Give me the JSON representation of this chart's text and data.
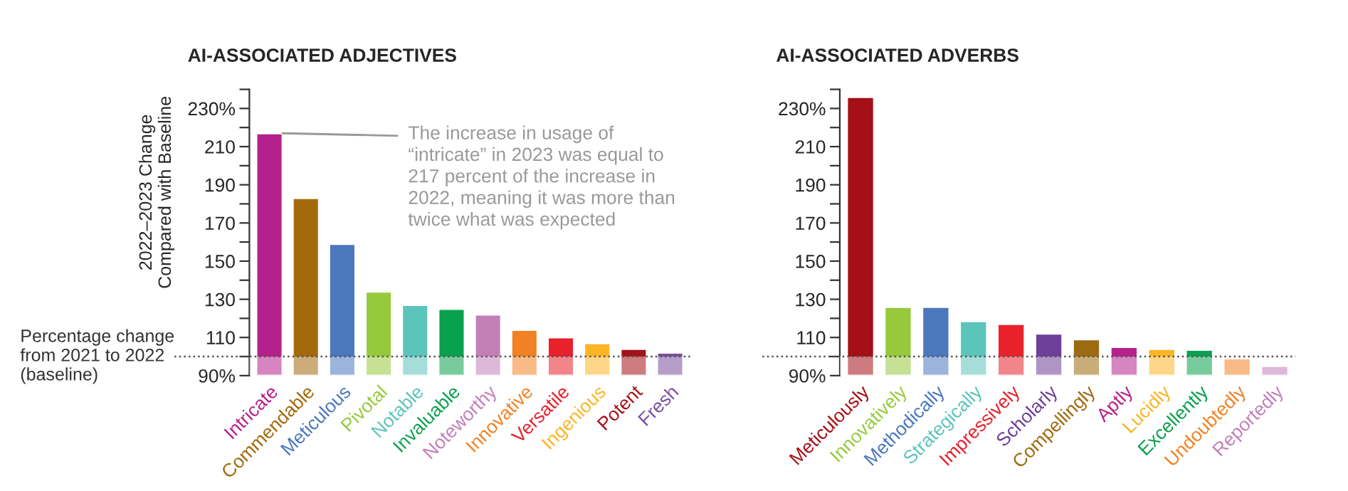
{
  "chart_data": [
    {
      "type": "bar",
      "title": "AI-ASSOCIATED ADJECTIVES",
      "ylabel": "2022–2023 Change\nCompared with Baseline",
      "categories": [
        "Intricate",
        "Commendable",
        "Meticulous",
        "Pivotal",
        "Notable",
        "Invaluable",
        "Noteworthy",
        "Innovative",
        "Versatile",
        "Ingenious",
        "Potent",
        "Fresh"
      ],
      "values": [
        217,
        183,
        159,
        134,
        127,
        125,
        122,
        114,
        110,
        107,
        104,
        102
      ],
      "colors": [
        "#b5218c",
        "#a36a0b",
        "#4a77bd",
        "#97c93d",
        "#5bc4bb",
        "#0aa14e",
        "#c47fb8",
        "#f28123",
        "#e8212b",
        "#fbb525",
        "#a41219",
        "#7a4fa0"
      ],
      "ylim": [
        90,
        240
      ],
      "yticks": [
        {
          "value": 90,
          "label": "90%"
        },
        {
          "value": 100,
          "label": null
        },
        110,
        {
          "value": 120,
          "label": null
        },
        130,
        {
          "value": 140,
          "label": null
        },
        150,
        {
          "value": 160,
          "label": null
        },
        170,
        {
          "value": 180,
          "label": null
        },
        190,
        {
          "value": 200,
          "label": null
        },
        210,
        {
          "value": 220,
          "label": null
        },
        {
          "value": 230,
          "label": "230%"
        },
        {
          "value": 240,
          "label": null
        }
      ],
      "ref_lines": [
        {
          "axis": "y",
          "value": 100,
          "label": "Percentage change\nfrom 2021 to 2022\n(baseline)",
          "color": "#555555",
          "line_style": "dotted"
        }
      ],
      "bands": [
        {
          "axis": "y",
          "from": 90,
          "to": 100,
          "color": "#ffffff"
        }
      ],
      "annotations": [
        {
          "text": "The increase in usage of\n“intricate” in 2023 was equal to\n217 percent of the increase in\n2022, meaning it was more than\ntwice what was expected",
          "x": "Intricate",
          "y": 217
        }
      ],
      "grid": false,
      "legend": false
    },
    {
      "type": "bar",
      "title": "AI-ASSOCIATED ADVERBS",
      "categories": [
        "Meticulously",
        "Innovatively",
        "Methodically",
        "Strategically",
        "Impressively",
        "Scholarly",
        "Compellingly",
        "Aptly",
        "Lucidly",
        "Excellently",
        "Undoubtedly",
        "Reportedly"
      ],
      "values": [
        236,
        126,
        126,
        118.5,
        117,
        112,
        109,
        105,
        104,
        103.5,
        99,
        95
      ],
      "colors": [
        "#a50f15",
        "#97c93d",
        "#4a77bd",
        "#5bc4bb",
        "#e8212b",
        "#6d3f98",
        "#9c6a10",
        "#b5218c",
        "#fbb525",
        "#0aa14e",
        "#f28123",
        "#c47fb8"
      ],
      "ylim": [
        90,
        240
      ],
      "yticks": [
        {
          "value": 90,
          "label": "90%"
        },
        {
          "value": 100,
          "label": null
        },
        110,
        {
          "value": 120,
          "label": null
        },
        130,
        {
          "value": 140,
          "label": null
        },
        150,
        {
          "value": 160,
          "label": null
        },
        170,
        {
          "value": 180,
          "label": null
        },
        190,
        {
          "value": 200,
          "label": null
        },
        210,
        {
          "value": 220,
          "label": null
        },
        {
          "value": 230,
          "label": "230%"
        },
        {
          "value": 240,
          "label": null
        }
      ],
      "ref_lines": [
        {
          "axis": "y",
          "value": 100,
          "color": "#555555",
          "line_style": "dotted"
        }
      ],
      "bands": [
        {
          "axis": "y",
          "from": 90,
          "to": 100,
          "color": "#ffffff"
        }
      ],
      "grid": false,
      "legend": false
    }
  ]
}
